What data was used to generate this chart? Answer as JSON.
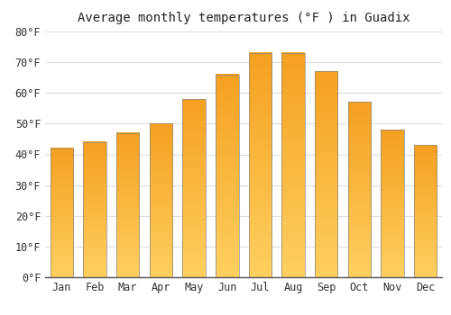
{
  "title": "Average monthly temperatures (°F ) in Guadix",
  "months": [
    "Jan",
    "Feb",
    "Mar",
    "Apr",
    "May",
    "Jun",
    "Jul",
    "Aug",
    "Sep",
    "Oct",
    "Nov",
    "Dec"
  ],
  "values": [
    42,
    44,
    47,
    50,
    58,
    66,
    73,
    73,
    67,
    57,
    48,
    43
  ],
  "bar_color_top": "#F5A623",
  "bar_color_bottom": "#FFD966",
  "bar_edge_color": "#888888",
  "background_color": "#FFFFFF",
  "plot_bg_color": "#FFFFFF",
  "ylim": [
    0,
    80
  ],
  "yticks": [
    0,
    10,
    20,
    30,
    40,
    50,
    60,
    70,
    80
  ],
  "ylabel_suffix": "°F",
  "grid_color": "#DDDDDD",
  "title_fontsize": 10,
  "tick_fontsize": 8.5
}
